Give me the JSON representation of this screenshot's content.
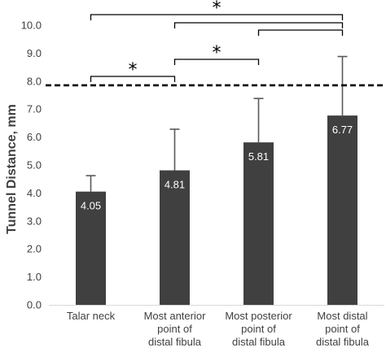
{
  "chart_data": {
    "type": "bar",
    "ylabel": "Tunnel Distance, mm",
    "ylim": [
      0,
      10
    ],
    "yticks": [
      "0.0",
      "1.0",
      "2.0",
      "3.0",
      "4.0",
      "5.0",
      "6.0",
      "7.0",
      "8.0",
      "9.0",
      "10.0"
    ],
    "categories": [
      [
        "Talar neck"
      ],
      [
        "Most anterior",
        "point of",
        "distal fibula"
      ],
      [
        "Most posterior",
        "point of",
        "distal fibula"
      ],
      [
        "Most distal",
        "point of",
        "distal fibula"
      ]
    ],
    "values": [
      4.05,
      4.81,
      5.81,
      6.77
    ],
    "value_labels": [
      "4.05",
      "4.81",
      "5.81",
      "6.77"
    ],
    "error_upper": [
      4.62,
      6.28,
      7.38,
      8.88
    ],
    "reference_line": {
      "y": 7.85,
      "style": "dashed"
    },
    "significance": [
      {
        "from": 0,
        "to": 1,
        "label": "*"
      },
      {
        "from": 1,
        "to": 2,
        "label": "*"
      },
      {
        "from": 2,
        "to": 3,
        "label": ""
      },
      {
        "from": 1,
        "to": 3,
        "label": ""
      },
      {
        "from": 0,
        "to": 3,
        "label": "*"
      }
    ],
    "colors": {
      "bar": "#404040",
      "axis": "#d9d9d9",
      "text": "#404040"
    },
    "grid": false,
    "legend": "none"
  }
}
